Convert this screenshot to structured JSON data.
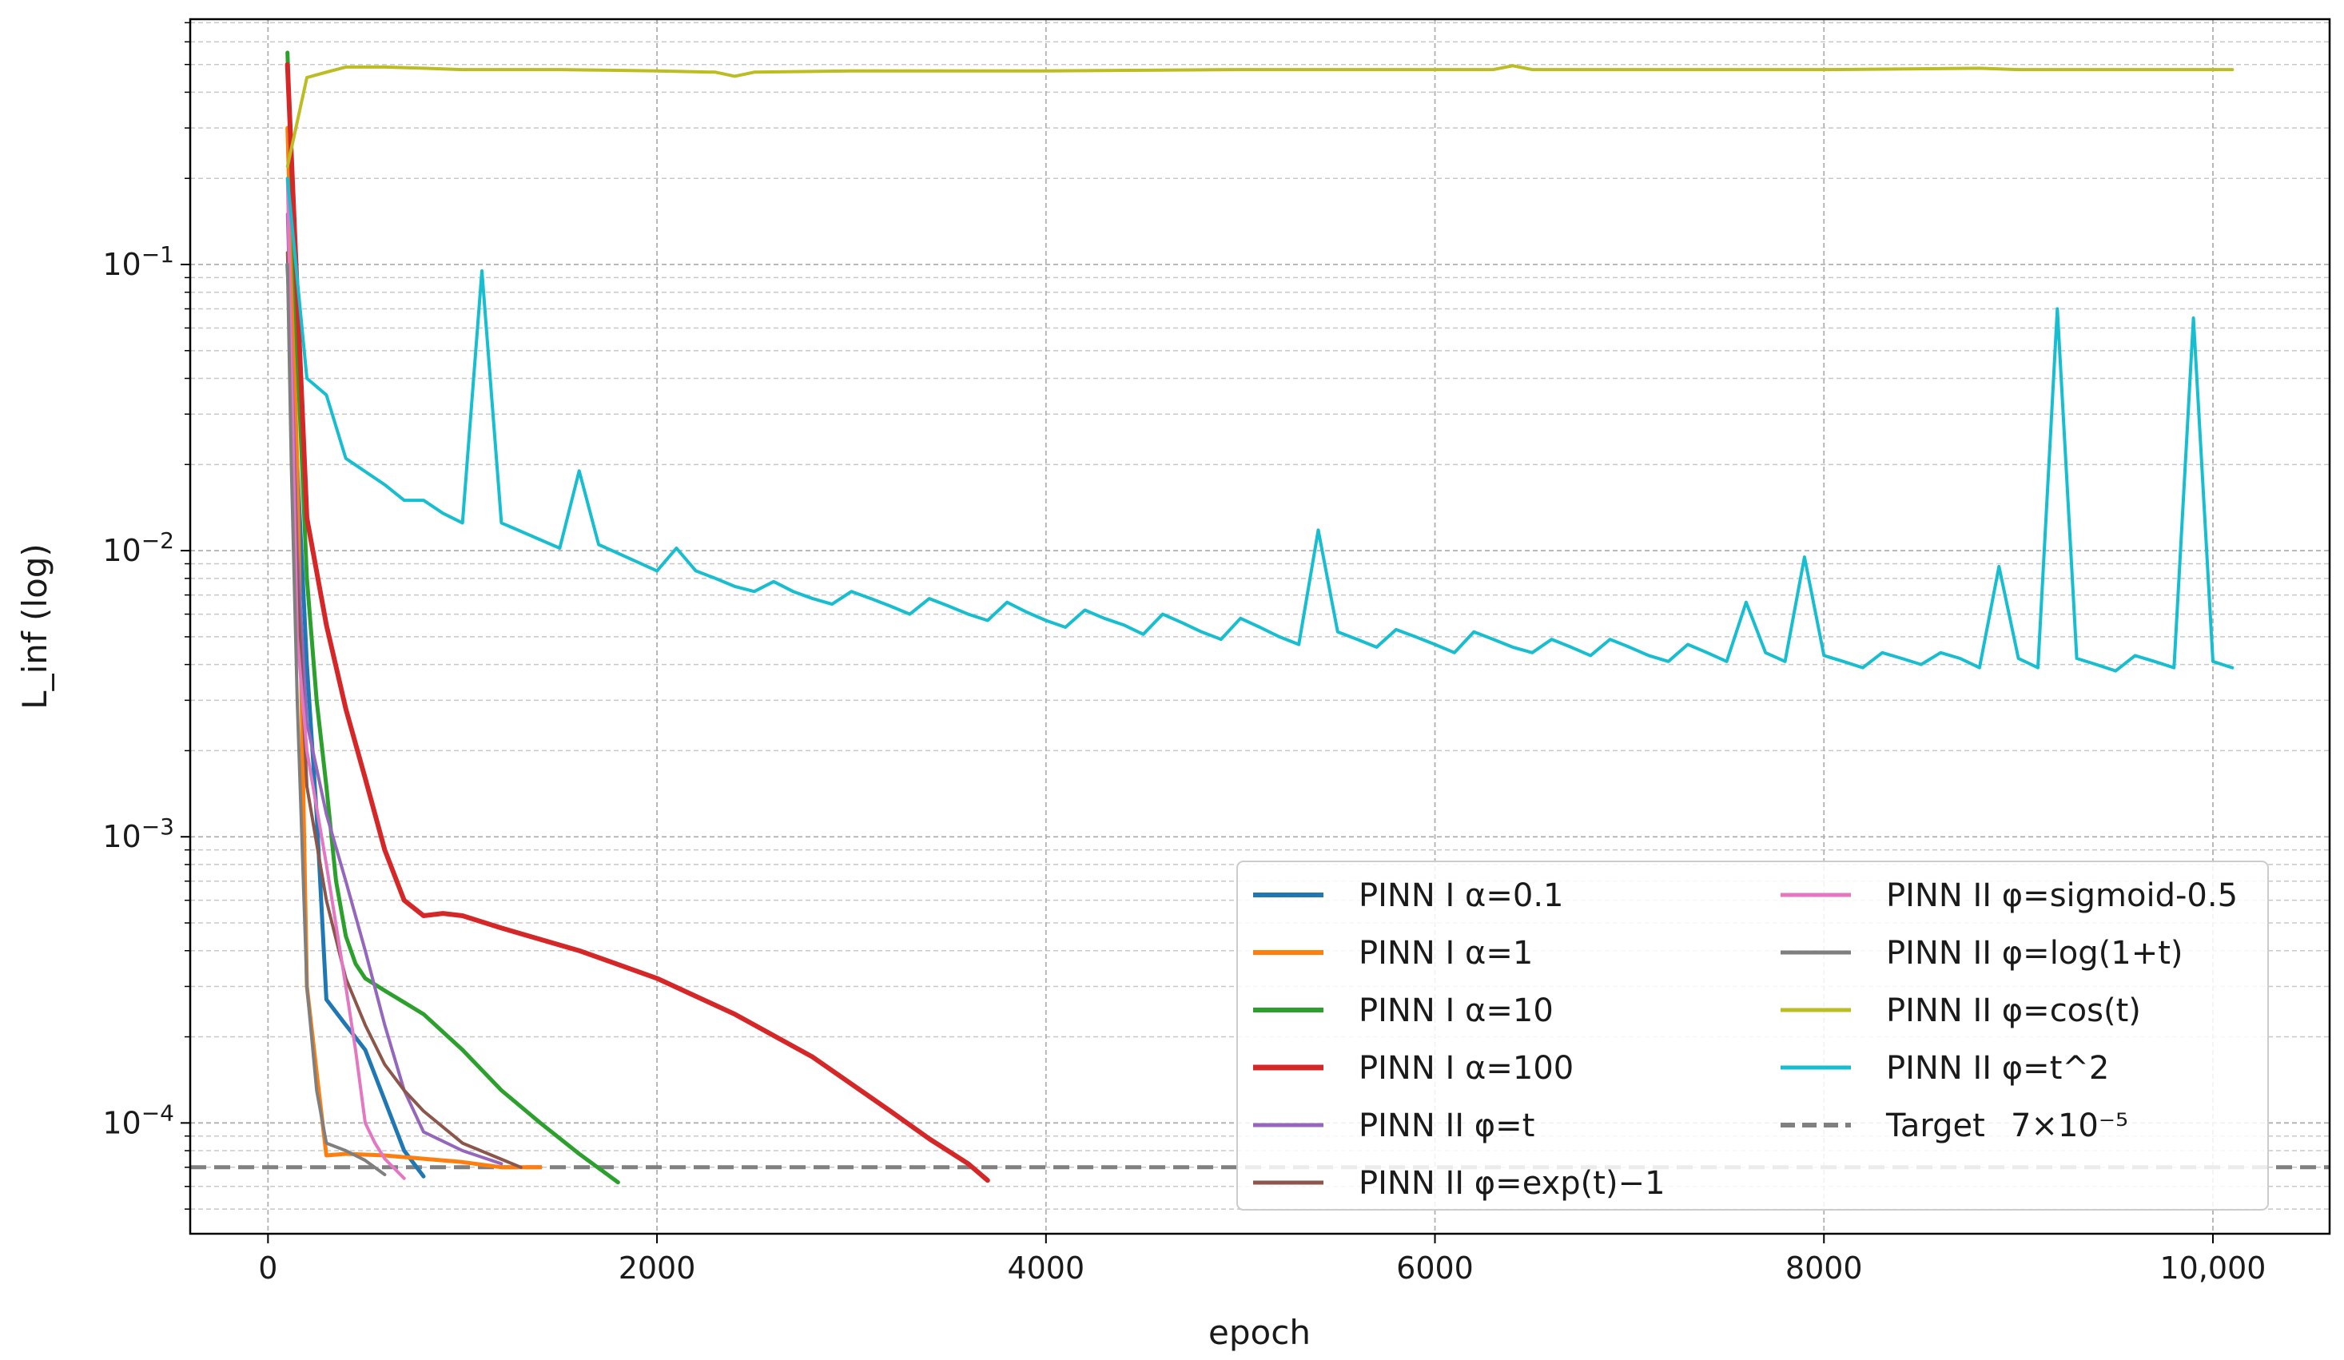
{
  "chart_data": {
    "type": "line",
    "xlabel": "epoch",
    "ylabel": "L_inf (log)",
    "yscale": "log",
    "xlim": [
      -400,
      10600
    ],
    "ylim": [
      4.1e-05,
      0.72
    ],
    "x_ticks": [
      {
        "value": 0,
        "label": "0"
      },
      {
        "value": 2000,
        "label": "2000"
      },
      {
        "value": 4000,
        "label": "4000"
      },
      {
        "value": 6000,
        "label": "6000"
      },
      {
        "value": 8000,
        "label": "8000"
      },
      {
        "value": 10000,
        "label": "10,000"
      }
    ],
    "y_ticks": [
      {
        "value": 0.1,
        "base": "10",
        "exp": "−1"
      },
      {
        "value": 0.01,
        "base": "10",
        "exp": "−2"
      },
      {
        "value": 0.001,
        "base": "10",
        "exp": "−3"
      },
      {
        "value": 0.0001,
        "base": "10",
        "exp": "−4"
      }
    ],
    "grid": true,
    "legend_position": "lower-right",
    "legend_columns": 2,
    "target": {
      "label": "Target",
      "value_label": "7×10⁻⁵",
      "y": 7e-05,
      "color": "#808080",
      "style": "dashed"
    },
    "series": [
      {
        "name": "PINN I α=0.1",
        "color": "#1f77b4",
        "width": 5,
        "x": [
          100,
          150,
          200,
          250,
          300,
          400,
          500,
          600,
          700,
          800
        ],
        "y": [
          0.1,
          0.02,
          0.004,
          0.0012,
          0.00027,
          0.00022,
          0.00018,
          0.00012,
          8e-05,
          6.5e-05
        ]
      },
      {
        "name": "PINN I α=1",
        "color": "#ff7f0e",
        "width": 5,
        "x": [
          100,
          150,
          200,
          250,
          300,
          400,
          600,
          800,
          1000,
          1200,
          1400
        ],
        "y": [
          0.3,
          0.02,
          0.0003,
          0.00015,
          7.7e-05,
          7.8e-05,
          7.7e-05,
          7.5e-05,
          7.3e-05,
          7e-05,
          7e-05
        ]
      },
      {
        "name": "PINN I α=10",
        "color": "#2ca02c",
        "width": 5,
        "x": [
          100,
          150,
          200,
          250,
          300,
          350,
          400,
          450,
          500,
          600,
          800,
          1000,
          1200,
          1400,
          1600,
          1800
        ],
        "y": [
          0.55,
          0.05,
          0.008,
          0.003,
          0.0015,
          0.0007,
          0.00045,
          0.00036,
          0.00032,
          0.00029,
          0.00024,
          0.00018,
          0.00013,
          0.0001,
          7.8e-05,
          6.2e-05
        ]
      },
      {
        "name": "PINN I α=100",
        "color": "#d62728",
        "width": 6,
        "x": [
          100,
          150,
          200,
          300,
          400,
          500,
          600,
          700,
          800,
          900,
          1000,
          1200,
          1600,
          2000,
          2400,
          2800,
          3200,
          3400,
          3600,
          3700
        ],
        "y": [
          0.5,
          0.08,
          0.013,
          0.0055,
          0.0028,
          0.0016,
          0.0009,
          0.0006,
          0.00053,
          0.00054,
          0.00053,
          0.00048,
          0.0004,
          0.00032,
          0.00024,
          0.00017,
          0.00011,
          8.8e-05,
          7.2e-05,
          6.3e-05
        ]
      },
      {
        "name": "PINN II φ=t",
        "color": "#9467bd",
        "width": 4,
        "x": [
          100,
          150,
          200,
          300,
          400,
          500,
          600,
          700,
          800,
          1000,
          1200
        ],
        "y": [
          0.15,
          0.01,
          0.0025,
          0.0012,
          0.0007,
          0.0004,
          0.00022,
          0.00013,
          9.3e-05,
          8e-05,
          7.2e-05
        ]
      },
      {
        "name": "PINN II φ=exp(t)−1",
        "color": "#8c564b",
        "width": 4,
        "x": [
          100,
          150,
          200,
          300,
          400,
          500,
          600,
          700,
          800,
          1000,
          1300
        ],
        "y": [
          0.11,
          0.008,
          0.0015,
          0.0006,
          0.00032,
          0.00022,
          0.00016,
          0.00013,
          0.00011,
          8.5e-05,
          7e-05
        ]
      },
      {
        "name": "PINN II φ=sigmoid-0.5",
        "color": "#e377c2",
        "width": 4,
        "x": [
          100,
          150,
          200,
          300,
          400,
          450,
          500,
          550,
          600,
          700
        ],
        "y": [
          0.2,
          0.005,
          0.002,
          0.0008,
          0.0003,
          0.00018,
          0.0001,
          8.5e-05,
          7.5e-05,
          6.4e-05
        ]
      },
      {
        "name": "PINN II φ=log(1+t)",
        "color": "#7f7f7f",
        "width": 4,
        "x": [
          100,
          120,
          150,
          200,
          250,
          300,
          400,
          500,
          600
        ],
        "y": [
          0.1,
          0.02,
          0.003,
          0.0003,
          0.00013,
          8.5e-05,
          8e-05,
          7.4e-05,
          6.6e-05
        ]
      },
      {
        "name": "PINN II φ=cos(t)",
        "color": "#bcbd22",
        "width": 4,
        "x": [
          100,
          200,
          300,
          400,
          600,
          800,
          1000,
          1500,
          2000,
          2300,
          2400,
          2500,
          3000,
          4000,
          5000,
          6000,
          6300,
          6400,
          6500,
          7000,
          8000,
          8800,
          9000,
          10000,
          10100
        ],
        "y": [
          0.22,
          0.45,
          0.47,
          0.49,
          0.49,
          0.485,
          0.48,
          0.48,
          0.475,
          0.47,
          0.455,
          0.47,
          0.475,
          0.475,
          0.48,
          0.48,
          0.48,
          0.495,
          0.48,
          0.48,
          0.48,
          0.485,
          0.48,
          0.48,
          0.48
        ]
      },
      {
        "name": "PINN II φ=t^2",
        "color": "#17becf",
        "width": 4,
        "x": [
          100,
          200,
          300,
          400,
          600,
          700,
          800,
          900,
          1000,
          1100,
          1200,
          1500,
          1600,
          1700,
          2000,
          2100,
          2200,
          2300,
          2400,
          2500,
          2600,
          2700,
          2800,
          2900,
          3000,
          3100,
          3200,
          3300,
          3400,
          3500,
          3600,
          3700,
          3800,
          3900,
          4000,
          4100,
          4200,
          4300,
          4400,
          4500,
          4600,
          4700,
          4800,
          4900,
          5000,
          5100,
          5200,
          5300,
          5400,
          5500,
          5600,
          5700,
          5800,
          5900,
          6000,
          6100,
          6200,
          6300,
          6400,
          6500,
          6600,
          6700,
          6800,
          6900,
          7000,
          7100,
          7200,
          7300,
          7400,
          7500,
          7600,
          7700,
          7800,
          7900,
          8000,
          8100,
          8200,
          8300,
          8400,
          8500,
          8600,
          8700,
          8800,
          8900,
          9000,
          9100,
          9200,
          9300,
          9400,
          9500,
          9600,
          9700,
          9800,
          9900,
          10000,
          10100
        ],
        "y": [
          0.2,
          0.04,
          0.035,
          0.021,
          0.017,
          0.015,
          0.015,
          0.0135,
          0.0125,
          0.095,
          0.0125,
          0.0102,
          0.019,
          0.0105,
          0.0085,
          0.0102,
          0.0085,
          0.008,
          0.0075,
          0.0072,
          0.0078,
          0.0072,
          0.0068,
          0.0065,
          0.0072,
          0.0068,
          0.0064,
          0.006,
          0.0068,
          0.0064,
          0.006,
          0.0057,
          0.0066,
          0.0061,
          0.0057,
          0.0054,
          0.0062,
          0.0058,
          0.0055,
          0.0051,
          0.006,
          0.0056,
          0.0052,
          0.0049,
          0.0058,
          0.0054,
          0.005,
          0.0047,
          0.0118,
          0.0052,
          0.0049,
          0.0046,
          0.0053,
          0.005,
          0.0047,
          0.0044,
          0.0052,
          0.0049,
          0.0046,
          0.0044,
          0.0049,
          0.0046,
          0.0043,
          0.0049,
          0.0046,
          0.0043,
          0.0041,
          0.0047,
          0.0044,
          0.0041,
          0.0066,
          0.0044,
          0.0041,
          0.0095,
          0.0043,
          0.0041,
          0.0039,
          0.0044,
          0.0042,
          0.004,
          0.0044,
          0.0042,
          0.0039,
          0.0088,
          0.0042,
          0.0039,
          0.07,
          0.0042,
          0.004,
          0.0038,
          0.0043,
          0.0041,
          0.0039,
          0.065,
          0.0041,
          0.0039
        ]
      }
    ]
  }
}
